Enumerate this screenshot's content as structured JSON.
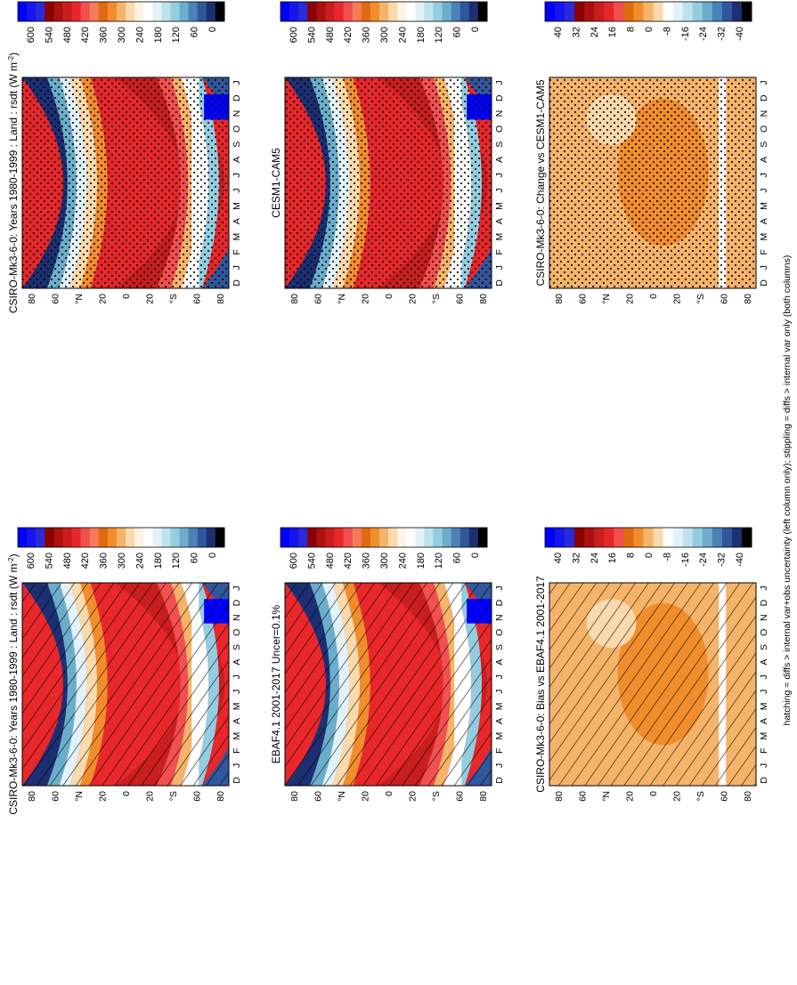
{
  "figure": {
    "footer": "hatching = diffs > internal var+obs uncertainty (left column only); stippling = diffs > internal var only (both columns)"
  },
  "months": [
    "D",
    "J",
    "F",
    "M",
    "A",
    "M",
    "J",
    "J",
    "A",
    "S",
    "O",
    "N",
    "D",
    "J"
  ],
  "lat_labels": [
    "80",
    "60",
    "°N",
    "20",
    "0",
    "20",
    "°S",
    "60",
    "80"
  ],
  "scales": {
    "abs": {
      "ticks": [
        "600",
        "540",
        "480",
        "420",
        "360",
        "300",
        "240",
        "180",
        "120",
        "60",
        "0"
      ],
      "colors": [
        "#0000ff",
        "#1515ee",
        "#2a2ad8",
        "#8b0000",
        "#aa1111",
        "#c81e1e",
        "#e8272a",
        "#f24f4f",
        "#f77b5b",
        "#e06a10",
        "#f28d2c",
        "#f5b469",
        "#fad9ab",
        "#fdf3e3",
        "#ffffff",
        "#e2f2f7",
        "#bfe2ec",
        "#94cde0",
        "#6aaecb",
        "#4b82b8",
        "#30579c",
        "#1c2f72",
        "#000000"
      ]
    },
    "diff": {
      "ticks": [
        "40",
        "32",
        "24",
        "16",
        "8",
        "0",
        "-8",
        "-16",
        "-24",
        "-32",
        "-40"
      ],
      "colors": [
        "#0000ff",
        "#1515ee",
        "#2a2ad8",
        "#8b0000",
        "#aa1111",
        "#c81e1e",
        "#e8272a",
        "#f24f4f",
        "#e06a10",
        "#f28d2c",
        "#f5b469",
        "#fad9ab",
        "#ffffff",
        "#e2f2f7",
        "#bfe2ec",
        "#94cde0",
        "#6aaecb",
        "#4b82b8",
        "#30579c",
        "#1c2f72",
        "#000000"
      ]
    }
  },
  "panels": [
    {
      "id": "model-left",
      "title": "CSIRO-Mk3-6-0: Years 1980-1999 : Land : rsdt (W m$^{-2}$)",
      "title_text": "CSIRO-Mk3-6-0: Years 1980-1999 : Land : rsdt (W m",
      "title_sup": "-2",
      "title_close": ")",
      "overlay": "hatch"
    },
    {
      "id": "model-right",
      "title_text": "CSIRO-Mk3-6-0: Years 1980-1999 : Land : rsdt (W m",
      "title_sup": "-2",
      "title_close": ")",
      "overlay": "stipple"
    },
    {
      "id": "obs-left",
      "title_text": "EBAF4.1 2001-2017 Uncer=0.1%",
      "title_sup": "",
      "title_close": "",
      "overlay": "hatch"
    },
    {
      "id": "obs-right",
      "title_text": "CESM1-CAM5",
      "title_sup": "",
      "title_close": "",
      "overlay": "stipple"
    },
    {
      "id": "bias-left",
      "title_text": "CSIRO-Mk3-6-0: Bias vs EBAF4.1 2001-2017",
      "title_sup": "",
      "title_close": "",
      "overlay": "hatch"
    },
    {
      "id": "change-right",
      "title_text": "CSIRO-Mk3-6-0: Change vs CESM1-CAM5",
      "title_sup": "",
      "title_close": "",
      "overlay": "stipple"
    }
  ],
  "chart_data": [
    {
      "type": "heatmap",
      "title": "CSIRO-Mk3-6-0: Years 1980-1999 : Land : rsdt (W m-2)",
      "x": [
        "D",
        "J",
        "F",
        "M",
        "A",
        "M",
        "J",
        "J",
        "A",
        "S",
        "O",
        "N",
        "D",
        "J"
      ],
      "y": [
        "80",
        "60",
        "°N",
        "20",
        "0",
        "20",
        "°S",
        "60",
        "80"
      ],
      "z_range": [
        0,
        600
      ],
      "colorbar_ticks": [
        600,
        540,
        480,
        420,
        360,
        300,
        240,
        180,
        120,
        60,
        0
      ],
      "hatching": "left column"
    },
    {
      "type": "heatmap",
      "title": "CSIRO-Mk3-6-0: Years 1980-1999 : Land : rsdt (W m-2)",
      "x": [
        "D",
        "J",
        "F",
        "M",
        "A",
        "M",
        "J",
        "J",
        "A",
        "S",
        "O",
        "N",
        "D",
        "J"
      ],
      "y": [
        "80",
        "60",
        "°N",
        "20",
        "0",
        "20",
        "°S",
        "60",
        "80"
      ],
      "z_range": [
        0,
        600
      ],
      "colorbar_ticks": [
        600,
        540,
        480,
        420,
        360,
        300,
        240,
        180,
        120,
        60,
        0
      ],
      "stippling": true
    },
    {
      "type": "heatmap",
      "title": "EBAF4.1 2001-2017 Uncer=0.1%",
      "z_range": [
        0,
        600
      ],
      "colorbar_ticks": [
        600,
        540,
        480,
        420,
        360,
        300,
        240,
        180,
        120,
        60,
        0
      ]
    },
    {
      "type": "heatmap",
      "title": "CESM1-CAM5",
      "z_range": [
        0,
        600
      ],
      "colorbar_ticks": [
        600,
        540,
        480,
        420,
        360,
        300,
        240,
        180,
        120,
        60,
        0
      ]
    },
    {
      "type": "heatmap",
      "title": "CSIRO-Mk3-6-0: Bias vs EBAF4.1 2001-2017",
      "z_range": [
        -40,
        40
      ],
      "colorbar_ticks": [
        40,
        32,
        24,
        16,
        8,
        0,
        -8,
        -16,
        -24,
        -32,
        -40
      ]
    },
    {
      "type": "heatmap",
      "title": "CSIRO-Mk3-6-0: Change vs CESM1-CAM5",
      "z_range": [
        -40,
        40
      ],
      "colorbar_ticks": [
        40,
        32,
        24,
        16,
        8,
        0,
        -8,
        -16,
        -24,
        -32,
        -40
      ]
    }
  ]
}
